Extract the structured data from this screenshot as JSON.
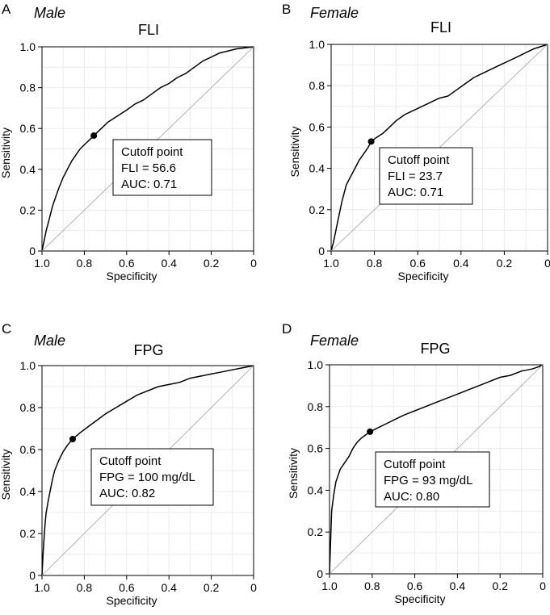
{
  "chart_data": [
    {
      "type": "line",
      "panel": "A",
      "group": "Male",
      "title": "FLI",
      "xlabel": "Specificity",
      "ylabel": "Sensitivity",
      "xlim": [
        1.0,
        0
      ],
      "ylim": [
        0,
        1.0
      ],
      "xticks": [
        1.0,
        0.8,
        0.6,
        0.4,
        0.2,
        0
      ],
      "xtick_labels": [
        "1.0",
        "0.8",
        "0.6",
        "0.4",
        "0.2",
        "0"
      ],
      "yticks": [
        0,
        0.2,
        0.4,
        0.6,
        0.8,
        1.0
      ],
      "ytick_labels": [
        "0",
        "0.2",
        "0.4",
        "0.6",
        "0.8",
        "1.0"
      ],
      "grid": true,
      "series": [
        {
          "name": "ROC",
          "x": [
            1.0,
            0.99,
            0.98,
            0.97,
            0.96,
            0.95,
            0.94,
            0.93,
            0.92,
            0.9,
            0.88,
            0.86,
            0.84,
            0.82,
            0.8,
            0.78,
            0.755,
            0.72,
            0.69,
            0.66,
            0.63,
            0.6,
            0.56,
            0.52,
            0.48,
            0.44,
            0.4,
            0.36,
            0.32,
            0.28,
            0.24,
            0.2,
            0.16,
            0.12,
            0.08,
            0.04,
            0.0
          ],
          "y": [
            0.0,
            0.05,
            0.1,
            0.14,
            0.18,
            0.22,
            0.25,
            0.28,
            0.31,
            0.36,
            0.4,
            0.44,
            0.47,
            0.5,
            0.52,
            0.54,
            0.565,
            0.6,
            0.63,
            0.65,
            0.67,
            0.69,
            0.72,
            0.74,
            0.77,
            0.8,
            0.82,
            0.85,
            0.87,
            0.9,
            0.93,
            0.95,
            0.97,
            0.98,
            0.99,
            0.995,
            1.0
          ]
        },
        {
          "name": "Reference",
          "x": [
            1.0,
            0.0
          ],
          "y": [
            0.0,
            1.0
          ]
        }
      ],
      "cutoff": {
        "x": 0.755,
        "y": 0.565
      },
      "annotation": {
        "lines": [
          "Cutoff point",
          "FLI = 56.6",
          "AUC: 0.71"
        ]
      }
    },
    {
      "type": "line",
      "panel": "B",
      "group": "Female",
      "title": "FLI",
      "xlabel": "Specificity",
      "ylabel": "Sensitivity",
      "xlim": [
        1.0,
        0
      ],
      "ylim": [
        0,
        1.0
      ],
      "xticks": [
        1.0,
        0.8,
        0.6,
        0.4,
        0.2,
        0
      ],
      "xtick_labels": [
        "1.0",
        "0.8",
        "0.6",
        "0.4",
        "0.2",
        "0"
      ],
      "yticks": [
        0,
        0.2,
        0.4,
        0.6,
        0.8,
        1.0
      ],
      "ytick_labels": [
        "0",
        "0.2",
        "0.4",
        "0.6",
        "0.8",
        "1.0"
      ],
      "grid": true,
      "series": [
        {
          "name": "ROC",
          "x": [
            1.0,
            0.99,
            0.98,
            0.97,
            0.96,
            0.95,
            0.94,
            0.93,
            0.91,
            0.89,
            0.87,
            0.85,
            0.83,
            0.815,
            0.79,
            0.76,
            0.73,
            0.7,
            0.66,
            0.62,
            0.58,
            0.54,
            0.5,
            0.46,
            0.42,
            0.38,
            0.34,
            0.3,
            0.26,
            0.22,
            0.18,
            0.14,
            0.1,
            0.06,
            0.03,
            0.0
          ],
          "y": [
            0.0,
            0.04,
            0.09,
            0.14,
            0.19,
            0.24,
            0.28,
            0.32,
            0.36,
            0.4,
            0.44,
            0.47,
            0.5,
            0.53,
            0.55,
            0.57,
            0.6,
            0.63,
            0.66,
            0.68,
            0.7,
            0.72,
            0.74,
            0.75,
            0.78,
            0.81,
            0.84,
            0.86,
            0.88,
            0.9,
            0.92,
            0.94,
            0.96,
            0.98,
            0.99,
            1.0
          ]
        },
        {
          "name": "Reference",
          "x": [
            1.0,
            0.0
          ],
          "y": [
            0.0,
            1.0
          ]
        }
      ],
      "cutoff": {
        "x": 0.815,
        "y": 0.53
      },
      "annotation": {
        "lines": [
          "Cutoff point",
          "FLI = 23.7",
          "AUC: 0.71"
        ]
      }
    },
    {
      "type": "line",
      "panel": "C",
      "group": "Male",
      "title": "FPG",
      "xlabel": "Specificity",
      "ylabel": "Sensitivity",
      "xlim": [
        1.0,
        0
      ],
      "ylim": [
        0,
        1.0
      ],
      "xticks": [
        1.0,
        0.8,
        0.6,
        0.4,
        0.2,
        0
      ],
      "xtick_labels": [
        "1.0",
        "0.8",
        "0.6",
        "0.4",
        "0.2",
        "0"
      ],
      "yticks": [
        0,
        0.2,
        0.4,
        0.6,
        0.8,
        1.0
      ],
      "ytick_labels": [
        "0",
        "0.2",
        "0.4",
        "0.6",
        "0.8",
        "1.0"
      ],
      "grid": true,
      "series": [
        {
          "name": "ROC",
          "x": [
            1.0,
            0.995,
            0.99,
            0.985,
            0.98,
            0.97,
            0.96,
            0.95,
            0.94,
            0.92,
            0.9,
            0.88,
            0.855,
            0.82,
            0.78,
            0.74,
            0.7,
            0.65,
            0.6,
            0.55,
            0.5,
            0.45,
            0.4,
            0.35,
            0.3,
            0.25,
            0.2,
            0.15,
            0.1,
            0.05,
            0.0
          ],
          "y": [
            0.0,
            0.1,
            0.18,
            0.25,
            0.3,
            0.36,
            0.41,
            0.46,
            0.5,
            0.55,
            0.59,
            0.62,
            0.65,
            0.68,
            0.71,
            0.74,
            0.77,
            0.8,
            0.83,
            0.86,
            0.88,
            0.9,
            0.91,
            0.92,
            0.94,
            0.95,
            0.96,
            0.97,
            0.98,
            0.99,
            1.0
          ]
        },
        {
          "name": "Reference",
          "x": [
            1.0,
            0.0
          ],
          "y": [
            0.0,
            1.0
          ]
        }
      ],
      "cutoff": {
        "x": 0.855,
        "y": 0.65
      },
      "annotation": {
        "lines": [
          "Cutoff point",
          "FPG = 100 mg/dL",
          "AUC: 0.82"
        ]
      }
    },
    {
      "type": "line",
      "panel": "D",
      "group": "Female",
      "title": "FPG",
      "xlabel": "Specificity",
      "ylabel": "Sensitivity",
      "xlim": [
        1.0,
        0
      ],
      "ylim": [
        0,
        1.0
      ],
      "xticks": [
        1.0,
        0.8,
        0.6,
        0.4,
        0.2,
        0
      ],
      "xtick_labels": [
        "1.0",
        "0.8",
        "0.6",
        "0.4",
        "0.2",
        "0"
      ],
      "yticks": [
        0,
        0.2,
        0.4,
        0.6,
        0.8,
        1.0
      ],
      "ytick_labels": [
        "0",
        "0.2",
        "0.4",
        "0.6",
        "0.8",
        "1.0"
      ],
      "grid": true,
      "series": [
        {
          "name": "ROC",
          "x": [
            1.0,
            0.995,
            0.99,
            0.98,
            0.97,
            0.96,
            0.95,
            0.93,
            0.91,
            0.89,
            0.87,
            0.85,
            0.81,
            0.77,
            0.73,
            0.69,
            0.65,
            0.6,
            0.55,
            0.5,
            0.45,
            0.4,
            0.35,
            0.3,
            0.25,
            0.2,
            0.15,
            0.1,
            0.05,
            0.02,
            0.0
          ],
          "y": [
            0.0,
            0.15,
            0.3,
            0.38,
            0.44,
            0.47,
            0.5,
            0.53,
            0.56,
            0.6,
            0.63,
            0.65,
            0.68,
            0.7,
            0.72,
            0.74,
            0.76,
            0.78,
            0.8,
            0.82,
            0.84,
            0.86,
            0.88,
            0.9,
            0.92,
            0.94,
            0.95,
            0.97,
            0.98,
            0.99,
            1.0
          ]
        },
        {
          "name": "Reference",
          "x": [
            1.0,
            0.0
          ],
          "y": [
            0.0,
            1.0
          ]
        }
      ],
      "cutoff": {
        "x": 0.81,
        "y": 0.68
      },
      "annotation": {
        "lines": [
          "Cutoff point",
          "FPG = 93 mg/dL",
          "AUC: 0.80"
        ]
      }
    }
  ],
  "colors": {
    "curve": "#000000",
    "reference": "#a0a0a0",
    "grid": "#ebebeb",
    "frame": "#000000",
    "background": "#ffffff"
  }
}
